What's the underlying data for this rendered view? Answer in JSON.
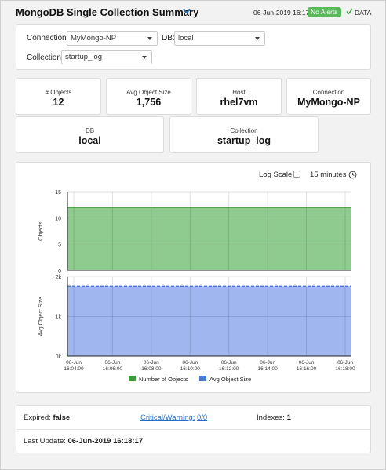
{
  "header": {
    "title": "MongoDB Single Collection Summary",
    "timestamp": "06-Jun-2019 16:17",
    "alert_badge": "No Alerts",
    "data_label": "DATA",
    "colors": {
      "badge": "#5cb85c",
      "check": "#3a9a3a"
    }
  },
  "filters": {
    "connection_label": "Connection:",
    "connection_value": "MyMongo-NP",
    "db_label": "DB:",
    "db_value": "local",
    "collection_label": "Collection:",
    "collection_value": "startup_log"
  },
  "kpis": [
    {
      "label": "# Objects",
      "value": "12"
    },
    {
      "label": "Avg Object Size",
      "value": "1,756"
    },
    {
      "label": "Host",
      "value": "rhel7vm"
    },
    {
      "label": "Connection",
      "value": "MyMongo-NP"
    },
    {
      "label": "DB",
      "value": "local"
    },
    {
      "label": "Collection",
      "value": "startup_log"
    }
  ],
  "chart_controls": {
    "log_scale_label": "Log Scale:",
    "log_scale_checked": false,
    "time_range": "15 minutes",
    "clock_icon": "clock-icon"
  },
  "chart_data": {
    "type": "area",
    "x": [
      "06-Jun 16:04:00",
      "06-Jun 16:06:00",
      "06-Jun 16:08:00",
      "06-Jun 16:10:00",
      "06-Jun 16:12:00",
      "06-Jun 16:14:00",
      "06-Jun 16:16:00",
      "06-Jun 16:18:00"
    ],
    "x_ticks": [
      [
        "06-Jun",
        "16:04:00"
      ],
      [
        "06-Jun",
        "16:06:00"
      ],
      [
        "06-Jun",
        "16:08:00"
      ],
      [
        "06-Jun",
        "16:10:00"
      ],
      [
        "06-Jun",
        "16:12:00"
      ],
      [
        "06-Jun",
        "16:14:00"
      ],
      [
        "06-Jun",
        "16:16:00"
      ],
      [
        "06-Jun",
        "16:18:00"
      ]
    ],
    "panels": [
      {
        "ylabel": "Objects",
        "ylim": [
          0,
          15
        ],
        "yticks": [
          0,
          5,
          10,
          15
        ],
        "ytick_labels": [
          "0",
          "5",
          "10",
          "15"
        ],
        "series": [
          {
            "name": "Number of Objects",
            "values": [
              12,
              12,
              12,
              12,
              12,
              12,
              12,
              12
            ],
            "color": "#3c9a3c",
            "fill": "#8fcb8f"
          }
        ]
      },
      {
        "ylabel": "Avg Object Size",
        "ylim": [
          0,
          2000
        ],
        "yticks": [
          0,
          1000,
          2000
        ],
        "ytick_labels": [
          "0k",
          "1k",
          "2k"
        ],
        "series": [
          {
            "name": "Avg Object Size",
            "values": [
              1756,
              1756,
              1756,
              1756,
              1756,
              1756,
              1756,
              1756
            ],
            "color": "#4a77cf",
            "fill": "#9fb6ef"
          }
        ]
      }
    ],
    "legend": [
      "Number of Objects",
      "Avg Object Size"
    ],
    "legend_placement": "bottom",
    "grid": true
  },
  "footer": {
    "expired_label": "Expired:",
    "expired_value": "false",
    "critical_label": "Critical/Warning:",
    "critical_value": "0/0",
    "indexes_label": "Indexes:",
    "indexes_value": "1",
    "last_update_label": "Last Update:",
    "last_update_value": "06-Jun-2019 16:18:17"
  }
}
